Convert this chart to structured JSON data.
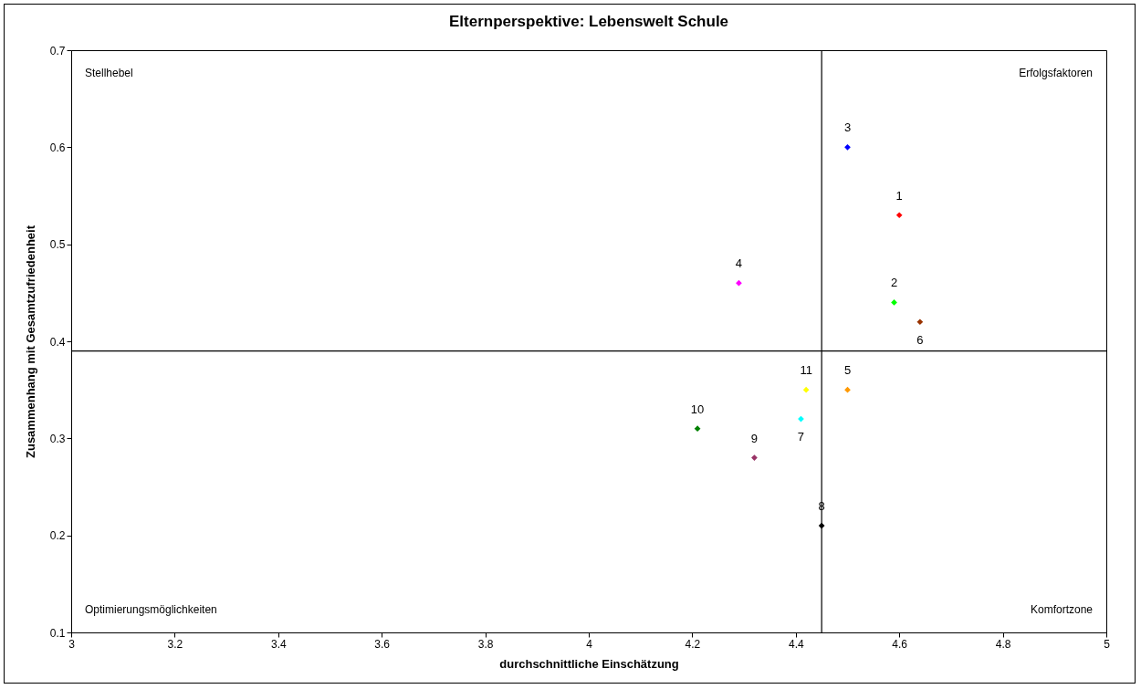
{
  "chart_data": {
    "type": "scatter",
    "title": "Elternperspektive: Lebenswelt Schule",
    "xlabel": "durchschnittliche Einschätzung",
    "ylabel": "Zusammenhang mit Gesamtzufriedenheit",
    "xlim": [
      3,
      5
    ],
    "xticks": [
      3,
      3.2,
      3.4,
      3.6,
      3.8,
      4,
      4.2,
      4.4,
      4.6,
      4.8,
      5
    ],
    "ylim": [
      0.1,
      0.7
    ],
    "yticks": [
      0.1,
      0.2,
      0.3,
      0.4,
      0.5,
      0.6,
      0.7
    ],
    "grid": false,
    "legend": false,
    "marker": "diamond",
    "series": [
      {
        "name": "1",
        "color": "#ff0000",
        "x": [
          4.6
        ],
        "values": [
          0.53
        ]
      },
      {
        "name": "2",
        "color": "#00ff00",
        "x": [
          4.59
        ],
        "values": [
          0.44
        ]
      },
      {
        "name": "3",
        "color": "#0000ff",
        "x": [
          4.5
        ],
        "values": [
          0.6
        ]
      },
      {
        "name": "4",
        "color": "#ff00ff",
        "x": [
          4.29
        ],
        "values": [
          0.46
        ]
      },
      {
        "name": "5",
        "color": "#ff9900",
        "x": [
          4.5
        ],
        "values": [
          0.35
        ]
      },
      {
        "name": "6",
        "color": "#993300",
        "x": [
          4.64
        ],
        "values": [
          0.42
        ]
      },
      {
        "name": "7",
        "color": "#00ffff",
        "x": [
          4.41
        ],
        "values": [
          0.32
        ]
      },
      {
        "name": "8",
        "color": "#000000",
        "x": [
          4.45
        ],
        "values": [
          0.21
        ]
      },
      {
        "name": "9",
        "color": "#993366",
        "x": [
          4.32
        ],
        "values": [
          0.28
        ]
      },
      {
        "name": "10",
        "color": "#008000",
        "x": [
          4.21
        ],
        "values": [
          0.31
        ]
      },
      {
        "name": "11",
        "color": "#ffff00",
        "x": [
          4.42
        ],
        "values": [
          0.35
        ]
      }
    ],
    "ref_lines": [
      {
        "axis": "x",
        "value": 4.45,
        "color": "#000000"
      },
      {
        "axis": "y",
        "value": 0.39,
        "color": "#000000"
      }
    ],
    "annotations": [
      "Stellhebel",
      "Erfolgsfaktoren",
      "Optimierungsmöglichkeiten",
      "Komfortzone"
    ]
  }
}
